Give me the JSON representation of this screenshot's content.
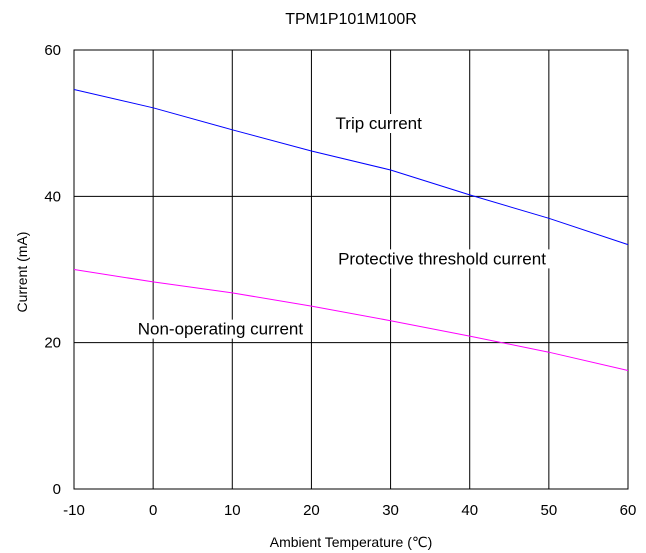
{
  "chart_data": {
    "type": "line",
    "title": "TPM1P101M100R",
    "xlabel": "Ambient Temperature (℃)",
    "ylabel": "Current (mA)",
    "xlim": [
      -10,
      60
    ],
    "ylim": [
      0,
      60
    ],
    "x_ticks": [
      -10,
      0,
      10,
      20,
      30,
      40,
      50,
      60
    ],
    "y_ticks": [
      0,
      20,
      40,
      60
    ],
    "grid": true,
    "series": [
      {
        "color": "#0000ff",
        "x": [
          -10,
          0,
          10,
          20,
          30,
          40,
          50,
          60
        ],
        "y": [
          54.6,
          52.1,
          49.1,
          46.2,
          43.6,
          40.2,
          37.0,
          33.4
        ]
      },
      {
        "color": "#ff00ff",
        "x": [
          -10,
          0,
          10,
          20,
          30,
          40,
          50,
          60
        ],
        "y": [
          30.0,
          28.3,
          26.8,
          25.0,
          23.0,
          20.9,
          18.7,
          16.2
        ]
      }
    ],
    "annotations": [
      {
        "text": "Trip current",
        "x": 28.5,
        "y": 49.2
      },
      {
        "text": "Protective threshold current",
        "x": 36.5,
        "y": 30.7
      },
      {
        "text": "Non-operating current",
        "x": 8.5,
        "y": 21.1
      }
    ]
  }
}
